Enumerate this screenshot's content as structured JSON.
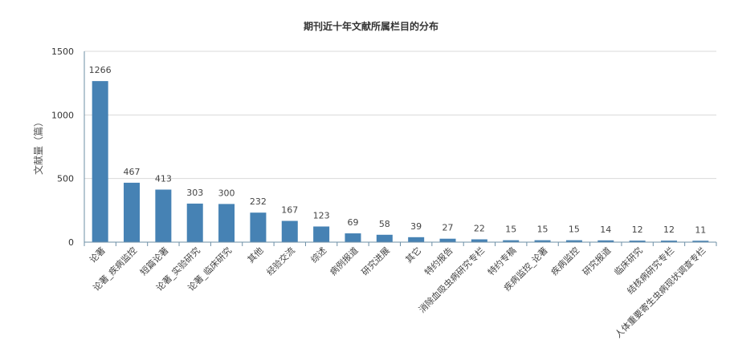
{
  "chart_data": {
    "type": "bar",
    "title": "期刊近十年文献所属栏目的分布",
    "xlabel": "",
    "ylabel": "文献量（篇）",
    "ylim": [
      0,
      1500
    ],
    "yticks": [
      "0",
      "500",
      "1000",
      "1500"
    ],
    "grid": true,
    "bar_color": "#4682b4",
    "categories": [
      "论著",
      "论著_疾病监控",
      "短篇论著",
      "论著_实验研究",
      "论著_临床研究",
      "其他",
      "经验交流",
      "综述",
      "病例报道",
      "研究进展",
      "其它",
      "特约报告",
      "消除血吸虫病研究专栏",
      "特约专稿",
      "疾病监控_论著",
      "疾病监控",
      "研究报道",
      "临床研究",
      "结核病研究专栏",
      "人体重要寄生虫病现状调查专栏"
    ],
    "values": [
      1266,
      467,
      413,
      303,
      300,
      232,
      167,
      123,
      69,
      58,
      39,
      27,
      22,
      15,
      15,
      15,
      14,
      12,
      12,
      11
    ]
  }
}
